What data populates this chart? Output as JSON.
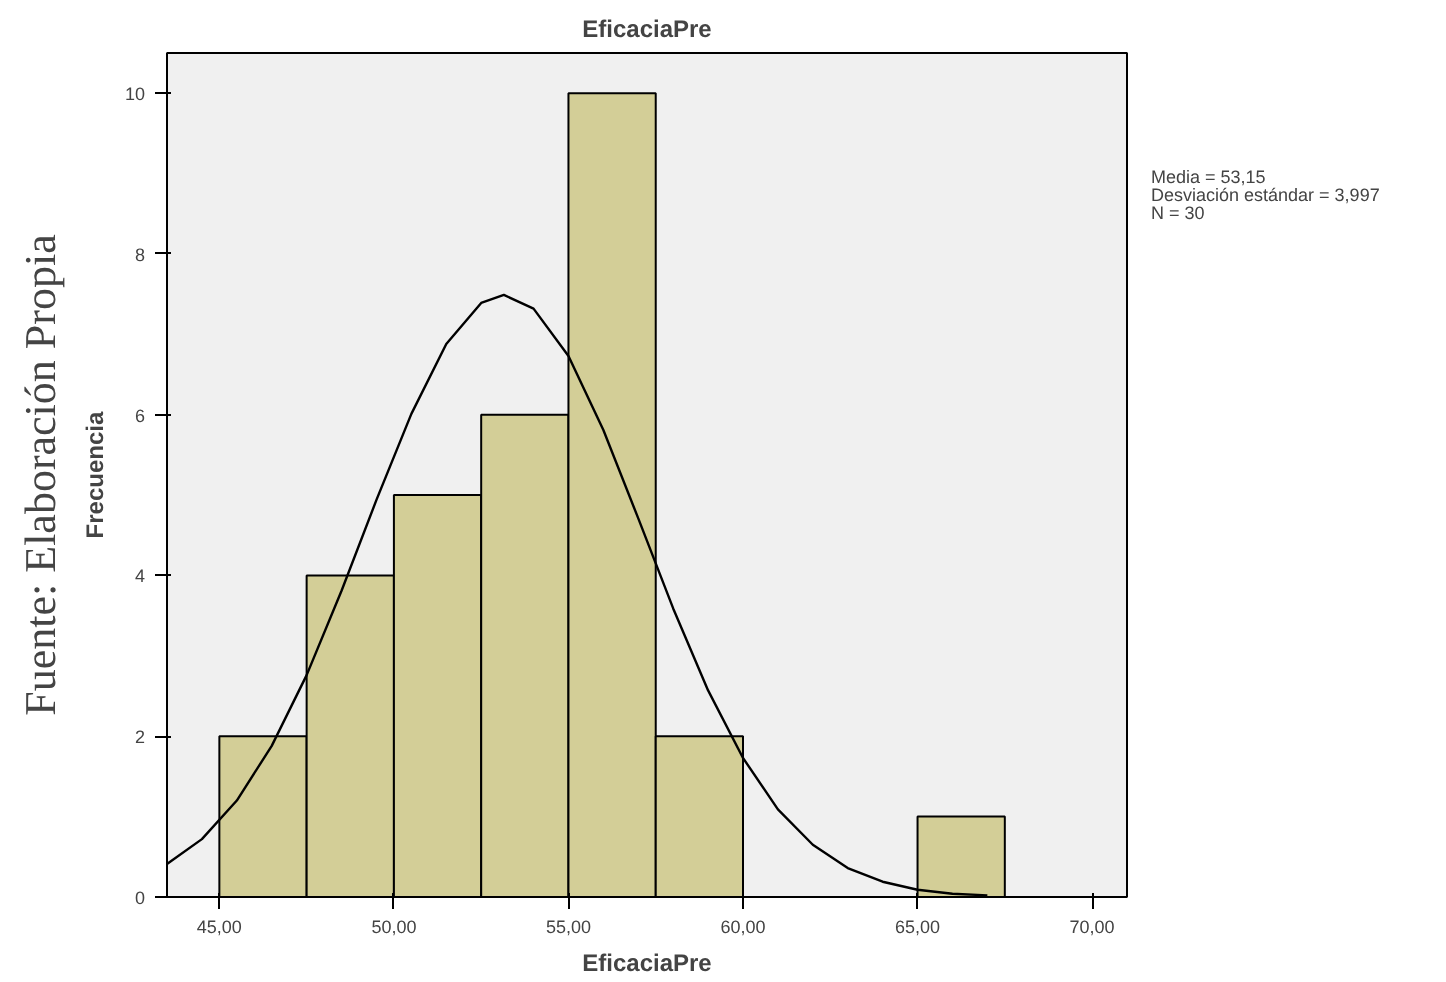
{
  "chart_data": {
    "type": "histogram",
    "title": "EficaciaPre",
    "xlabel": "EficaciaPre",
    "ylabel": "Frecuencia",
    "series": [
      {
        "bins": [
          45,
          47.5,
          50,
          52.5,
          55,
          57.5,
          60,
          62.5,
          65,
          67.5
        ],
        "values": [
          2,
          4,
          5,
          6,
          10,
          2,
          0,
          0,
          1
        ],
        "color": "#d3ce97"
      },
      {
        "type": "line",
        "x": [
          43.5,
          44.5,
          45.5,
          46.5,
          47.5,
          48.5,
          49.5,
          50.5,
          51.5,
          52.5,
          53.15,
          54,
          55,
          56,
          57,
          58,
          59,
          60,
          61,
          62,
          63,
          64,
          65,
          66,
          67
        ],
        "values": [
          0.41,
          0.72,
          1.2,
          1.88,
          2.76,
          3.81,
          4.94,
          6.01,
          6.88,
          7.39,
          7.49,
          7.32,
          6.73,
          5.81,
          4.71,
          3.59,
          2.57,
          1.73,
          1.09,
          0.65,
          0.36,
          0.19,
          0.09,
          0.04,
          0.02
        ],
        "color": "#000000"
      }
    ],
    "xlim": [
      43.5,
      71
    ],
    "ylim": [
      0,
      10.5
    ],
    "xticks": [
      {
        "value": 45,
        "label": "45,00"
      },
      {
        "value": 50,
        "label": "50,00"
      },
      {
        "value": 55,
        "label": "55,00"
      },
      {
        "value": 60,
        "label": "60,00"
      },
      {
        "value": 65,
        "label": "65,00"
      },
      {
        "value": 70,
        "label": "70,00"
      }
    ],
    "yticks": [
      0,
      2,
      4,
      6,
      8,
      10
    ],
    "grid": false,
    "annotations": [
      "Fuente: Elaboración Propia",
      "Media = 53,15",
      "Desviación estándar = 3,997",
      "N = 30"
    ]
  }
}
